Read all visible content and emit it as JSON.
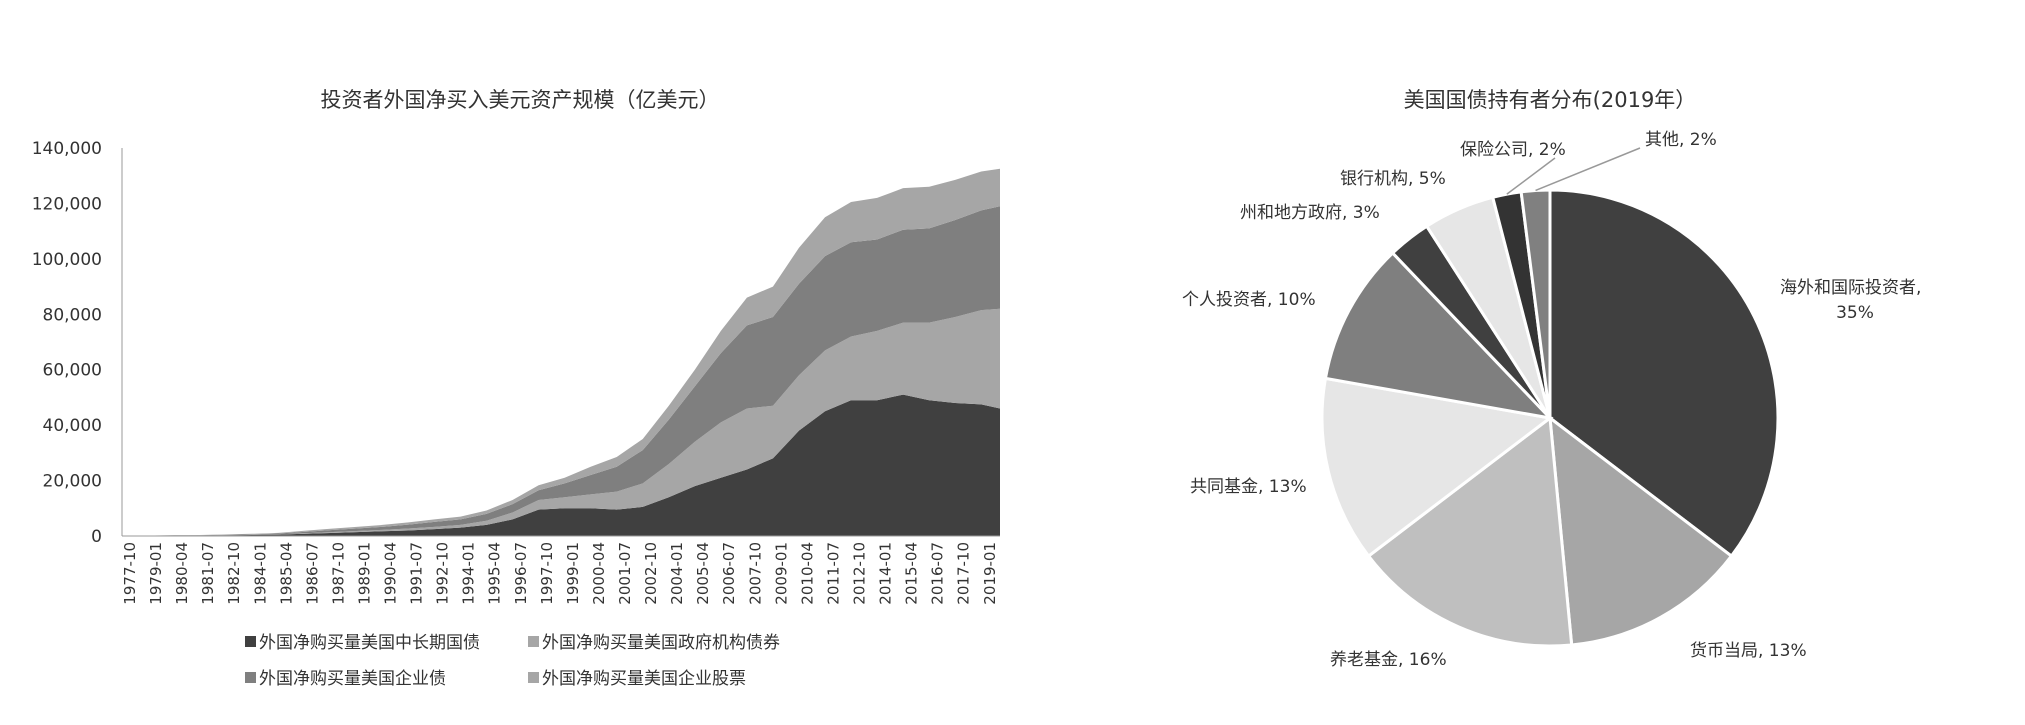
{
  "chart_data": [
    {
      "type": "area",
      "stacked": true,
      "title": "投资者外国净买入美元资产规模（亿美元）",
      "ylim": [
        0,
        140000
      ],
      "yticks": [
        0,
        20000,
        40000,
        60000,
        80000,
        100000,
        120000,
        140000
      ],
      "ytick_labels": [
        "0",
        "20,000",
        "40,000",
        "60,000",
        "80,000",
        "100,000",
        "120,000",
        "140,000"
      ],
      "xtick_labels": [
        "1977-10",
        "1979-01",
        "1980-04",
        "1981-07",
        "1982-10",
        "1984-01",
        "1985-04",
        "1986-07",
        "1987-10",
        "1989-01",
        "1990-04",
        "1991-07",
        "1992-10",
        "1994-01",
        "1995-04",
        "1996-07",
        "1997-10",
        "1999-01",
        "2000-04",
        "2001-07",
        "2002-10",
        "2004-01",
        "2005-04",
        "2006-07",
        "2007-10",
        "2009-01",
        "2010-04",
        "2011-07",
        "2012-10",
        "2014-01",
        "2015-04",
        "2016-07",
        "2017-10",
        "2019-01"
      ],
      "x": [
        1977.75,
        1979.0,
        1980.25,
        1981.5,
        1982.75,
        1984.0,
        1985.25,
        1986.5,
        1987.75,
        1989.0,
        1990.25,
        1991.5,
        1992.75,
        1994.0,
        1995.25,
        1996.5,
        1997.75,
        1999.0,
        2000.25,
        2001.5,
        2002.75,
        2004.0,
        2005.25,
        2006.5,
        2007.75,
        2009.0,
        2010.25,
        2011.5,
        2012.75,
        2014.0,
        2015.25,
        2016.5,
        2017.75,
        2019.0,
        2019.9
      ],
      "legend_position": "bottom",
      "series": [
        {
          "name": "外国净购买量美国中长期国债",
          "color": "#404040",
          "values": [
            0,
            50,
            100,
            150,
            250,
            350,
            500,
            800,
            1100,
            1400,
            1700,
            2000,
            2500,
            3000,
            4000,
            6000,
            9500,
            10000,
            10000,
            9500,
            10500,
            14000,
            18000,
            21000,
            24000,
            28000,
            38000,
            45000,
            49000,
            49000,
            51000,
            49000,
            48000,
            47500,
            46000
          ]
        },
        {
          "name": "外国净购买量美国政府机构债券",
          "color": "#a6a6a6",
          "values": [
            0,
            0,
            0,
            0,
            50,
            50,
            100,
            200,
            300,
            400,
            500,
            700,
            800,
            1000,
            1500,
            2500,
            3500,
            4000,
            5000,
            6500,
            8500,
            12000,
            16000,
            20000,
            22000,
            19000,
            20000,
            22000,
            23000,
            25000,
            26000,
            28000,
            31000,
            34000,
            36000
          ]
        },
        {
          "name": "外国净购买量美国企业债",
          "color": "#7f7f7f",
          "values": [
            0,
            50,
            100,
            100,
            150,
            200,
            300,
            500,
            700,
            900,
            1100,
            1400,
            1800,
            2000,
            2500,
            3000,
            3500,
            5000,
            7000,
            9000,
            12000,
            16000,
            20000,
            25000,
            30000,
            32000,
            33000,
            34000,
            34000,
            33000,
            33500,
            34000,
            35000,
            36000,
            37000
          ]
        },
        {
          "name": "外国净购买量美国企业股票",
          "color": "#a6a6a6",
          "values": [
            0,
            50,
            100,
            100,
            150,
            200,
            250,
            400,
            500,
            600,
            700,
            800,
            900,
            1000,
            1200,
            1500,
            1800,
            2000,
            3000,
            3500,
            4000,
            5000,
            6000,
            8000,
            10000,
            11000,
            13000,
            14000,
            14500,
            15000,
            15000,
            15000,
            14500,
            14000,
            13500
          ]
        }
      ]
    },
    {
      "type": "pie",
      "title": "美国国债持有者分布(2019年）",
      "slices": [
        {
          "label": "海外和国际投资者,",
          "pct_label": "35%",
          "value": 35,
          "color": "#404040"
        },
        {
          "label": "货币当局, 13%",
          "value": 13,
          "color": "#a6a6a6"
        },
        {
          "label": "养老基金, 16%",
          "value": 16,
          "color": "#bfbfbf"
        },
        {
          "label": "共同基金, 13%",
          "value": 13,
          "color": "#e6e6e6"
        },
        {
          "label": "个人投资者, 10%",
          "value": 10,
          "color": "#7f7f7f"
        },
        {
          "label": "州和地方政府, 3%",
          "value": 3,
          "color": "#404040"
        },
        {
          "label": "银行机构, 5%",
          "value": 5,
          "color": "#e6e6e6"
        },
        {
          "label": "保险公司, 2%",
          "value": 2,
          "color": "#333333"
        },
        {
          "label": "其他, 2%",
          "value": 2,
          "color": "#808080"
        }
      ]
    }
  ]
}
